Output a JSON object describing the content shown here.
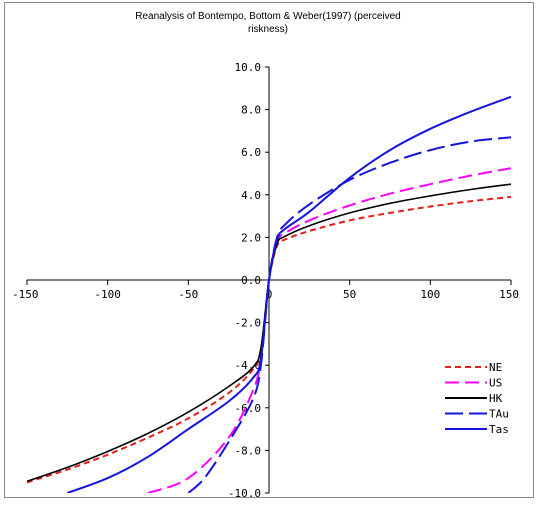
{
  "chart_data": {
    "type": "line",
    "title_line1": "Reanalysis of Bontempo, Bottom & Weber(1997) (perceived",
    "title_line2": "riskness)",
    "xlim": [
      -150,
      150
    ],
    "ylim": [
      -10,
      10
    ],
    "x_ticks": [
      -150,
      -100,
      -50,
      0,
      50,
      100,
      150
    ],
    "x_tick_labels": [
      "-150",
      "-100",
      "-50",
      "0",
      "50",
      "100",
      "150"
    ],
    "y_ticks": [
      -10,
      -8,
      -6,
      -4,
      -2,
      0,
      2,
      4,
      6,
      8,
      10
    ],
    "y_tick_labels": [
      "-10.0",
      "-8.0",
      "-6.0",
      "-4.0",
      "-2.0",
      "0.0",
      "2.0",
      "4.0",
      "6.0",
      "8.0",
      "10.0"
    ],
    "legend_position": "lower-right",
    "series": [
      {
        "name": "NE",
        "color": "#e8201c",
        "dash": "6,4",
        "x": [
          -150,
          -125,
          -100,
          -75,
          -50,
          -25,
          -10,
          -5,
          0,
          5,
          10,
          25,
          50,
          75,
          100,
          125,
          150
        ],
        "y": [
          -9.5,
          -8.9,
          -8.2,
          -7.4,
          -6.5,
          -5.3,
          -4.2,
          -3.3,
          0,
          1.6,
          1.9,
          2.3,
          2.8,
          3.15,
          3.45,
          3.7,
          3.9
        ]
      },
      {
        "name": "US",
        "color": "#ff00ff",
        "dash": "14,6",
        "x": [
          -75,
          -50,
          -25,
          -10,
          -5,
          0,
          5,
          10,
          25,
          50,
          75,
          100,
          125,
          150
        ],
        "y": [
          -10,
          -9.3,
          -7.4,
          -5.2,
          -3.7,
          0,
          1.8,
          2.2,
          2.8,
          3.5,
          4.05,
          4.5,
          4.9,
          5.25
        ]
      },
      {
        "name": "HK",
        "color": "#000000",
        "dash": "",
        "x": [
          -150,
          -125,
          -100,
          -75,
          -50,
          -25,
          -10,
          -5,
          0,
          5,
          10,
          25,
          50,
          75,
          100,
          125,
          150
        ],
        "y": [
          -9.45,
          -8.8,
          -8.05,
          -7.2,
          -6.2,
          -5.0,
          -4.1,
          -3.2,
          0,
          1.7,
          2.05,
          2.55,
          3.15,
          3.6,
          3.95,
          4.25,
          4.5
        ]
      },
      {
        "name": "TAu",
        "color": "#1414dc",
        "dash": "18,6",
        "x": [
          -50,
          -40,
          -25,
          -10,
          -5,
          0,
          5,
          10,
          25,
          50,
          75,
          100,
          125,
          150
        ],
        "y": [
          -10,
          -9.3,
          -7.6,
          -5.6,
          -4.0,
          0,
          2.0,
          2.6,
          3.55,
          4.7,
          5.5,
          6.1,
          6.5,
          6.7
        ]
      },
      {
        "name": "Tas",
        "color": "#1414dc",
        "dash": "",
        "x": [
          -125,
          -100,
          -75,
          -50,
          -25,
          -10,
          -5,
          0,
          5,
          10,
          25,
          50,
          75,
          100,
          125,
          150
        ],
        "y": [
          -10,
          -9.3,
          -8.3,
          -7.0,
          -5.7,
          -4.6,
          -3.7,
          0,
          1.9,
          2.4,
          3.2,
          4.8,
          6.1,
          7.1,
          7.9,
          8.6
        ]
      }
    ]
  }
}
